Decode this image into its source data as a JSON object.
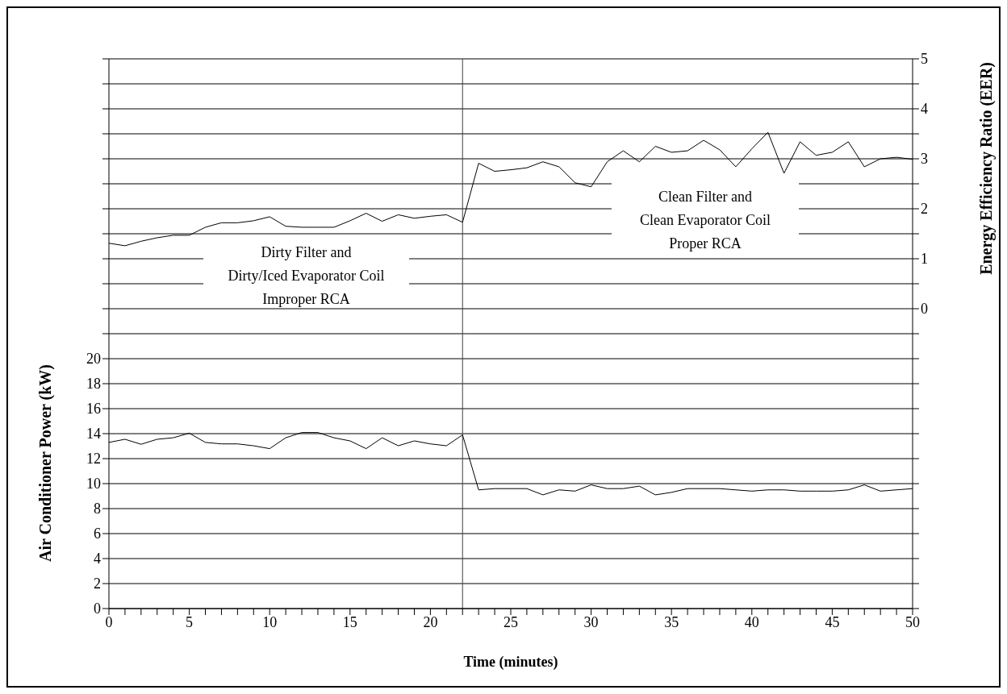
{
  "chart_data": {
    "type": "line",
    "xlabel": "Time (minutes)",
    "ylabel": "Air Conditioner Power (kW)",
    "y2label": "Energy Efficiency Ratio (EER)",
    "x": [
      0,
      1,
      2,
      3,
      4,
      5,
      6,
      7,
      8,
      9,
      10,
      11,
      12,
      13,
      14,
      15,
      16,
      17,
      18,
      19,
      20,
      21,
      22,
      23,
      24,
      25,
      26,
      27,
      28,
      29,
      30,
      31,
      32,
      33,
      34,
      35,
      36,
      37,
      38,
      39,
      40,
      41,
      42,
      43,
      44,
      45,
      46,
      47,
      48,
      49,
      50
    ],
    "series": [
      {
        "color": "#000000",
        "values": [
          13.3,
          13.55,
          13.15,
          13.55,
          13.67,
          14.04,
          13.3,
          13.18,
          13.18,
          13.03,
          12.8,
          13.67,
          14.09,
          14.09,
          13.67,
          13.42,
          12.8,
          13.67,
          13.03,
          13.42,
          13.18,
          13.03,
          13.9,
          9.5,
          9.6,
          9.6,
          9.6,
          9.1,
          9.5,
          9.4,
          9.9,
          9.6,
          9.6,
          9.8,
          9.1,
          9.3,
          9.6,
          9.6,
          9.6,
          9.5,
          9.4,
          9.5,
          9.5,
          9.4,
          9.4,
          9.4,
          9.5,
          9.9,
          9.4,
          9.5,
          9.6
        ]
      },
      {
        "color": "#000000",
        "axis": "y2",
        "values": [
          1.31,
          1.26,
          1.35,
          1.42,
          1.47,
          1.47,
          1.63,
          1.72,
          1.72,
          1.76,
          1.84,
          1.65,
          1.63,
          1.63,
          1.63,
          1.76,
          1.91,
          1.75,
          1.88,
          1.81,
          1.85,
          1.88,
          1.73,
          2.91,
          2.75,
          2.78,
          2.82,
          2.94,
          2.84,
          2.52,
          2.44,
          2.94,
          3.16,
          2.94,
          3.25,
          3.13,
          3.16,
          3.37,
          3.18,
          2.84,
          3.2,
          3.53,
          2.71,
          3.34,
          3.07,
          3.13,
          3.34,
          2.84,
          3.0,
          3.03,
          2.99
        ]
      }
    ],
    "xlim": [
      0,
      50
    ],
    "xticks": [
      0,
      {
        "value": 1,
        "label": null
      },
      {
        "value": 2,
        "label": null
      },
      {
        "value": 3,
        "label": null
      },
      {
        "value": 4,
        "label": null
      },
      5,
      {
        "value": 6,
        "label": null
      },
      {
        "value": 7,
        "label": null
      },
      {
        "value": 8,
        "label": null
      },
      {
        "value": 9,
        "label": null
      },
      10,
      {
        "value": 11,
        "label": null
      },
      {
        "value": 12,
        "label": null
      },
      {
        "value": 13,
        "label": null
      },
      {
        "value": 14,
        "label": null
      },
      15,
      {
        "value": 16,
        "label": null
      },
      {
        "value": 17,
        "label": null
      },
      {
        "value": 18,
        "label": null
      },
      {
        "value": 19,
        "label": null
      },
      20,
      {
        "value": 21,
        "label": null
      },
      {
        "value": 22,
        "label": null
      },
      {
        "value": 23,
        "label": null
      },
      {
        "value": 24,
        "label": null
      },
      25,
      {
        "value": 26,
        "label": null
      },
      {
        "value": 27,
        "label": null
      },
      {
        "value": 28,
        "label": null
      },
      {
        "value": 29,
        "label": null
      },
      30,
      {
        "value": 31,
        "label": null
      },
      {
        "value": 32,
        "label": null
      },
      {
        "value": 33,
        "label": null
      },
      {
        "value": 34,
        "label": null
      },
      35,
      {
        "value": 36,
        "label": null
      },
      {
        "value": 37,
        "label": null
      },
      {
        "value": 38,
        "label": null
      },
      {
        "value": 39,
        "label": null
      },
      40,
      {
        "value": 41,
        "label": null
      },
      {
        "value": 42,
        "label": null
      },
      {
        "value": 43,
        "label": null
      },
      {
        "value": 44,
        "label": null
      },
      45,
      {
        "value": 46,
        "label": null
      },
      {
        "value": 47,
        "label": null
      },
      {
        "value": 48,
        "label": null
      },
      {
        "value": 49,
        "label": null
      },
      50
    ],
    "ylim": [
      0,
      44
    ],
    "yticks": [
      0,
      2,
      4,
      6,
      8,
      10,
      12,
      14,
      16,
      18,
      20,
      {
        "value": 22,
        "label": null
      },
      {
        "value": 24,
        "label": null
      },
      {
        "value": 26,
        "label": null
      },
      {
        "value": 28,
        "label": null
      },
      {
        "value": 30,
        "label": null
      },
      {
        "value": 32,
        "label": null
      },
      {
        "value": 34,
        "label": null
      },
      {
        "value": 36,
        "label": null
      },
      {
        "value": 38,
        "label": null
      },
      {
        "value": 40,
        "label": null
      },
      {
        "value": 42,
        "label": null
      },
      {
        "value": 44,
        "label": null
      }
    ],
    "y2lim": [
      -6,
      5
    ],
    "y2ticks": [
      {
        "value": -6,
        "label": null
      },
      {
        "value": -5.5,
        "label": null
      },
      {
        "value": -5,
        "label": null
      },
      {
        "value": -4.5,
        "label": null
      },
      {
        "value": -4,
        "label": null
      },
      {
        "value": -3.5,
        "label": null
      },
      {
        "value": -3,
        "label": null
      },
      {
        "value": -2.5,
        "label": null
      },
      {
        "value": -2,
        "label": null
      },
      {
        "value": -1.5,
        "label": null
      },
      {
        "value": -1,
        "label": null
      },
      {
        "value": -0.5,
        "label": null
      },
      0,
      {
        "value": 0.5,
        "label": null
      },
      1,
      {
        "value": 1.5,
        "label": null
      },
      2,
      {
        "value": 2.5,
        "label": null
      },
      3,
      {
        "value": 3.5,
        "label": null
      },
      4,
      {
        "value": 4.5,
        "label": null
      },
      5
    ],
    "grid": "y",
    "marker": "none",
    "line_style": "solid",
    "ref_lines": [
      {
        "axis": "x",
        "value": 22,
        "color": "#404040"
      }
    ],
    "annotations": [
      "Dirty Filter and\nDirty/Iced Evaporator Coil\nImproper RCA",
      "Clean Filter and\nClean Evaporator Coil\nProper RCA"
    ]
  }
}
